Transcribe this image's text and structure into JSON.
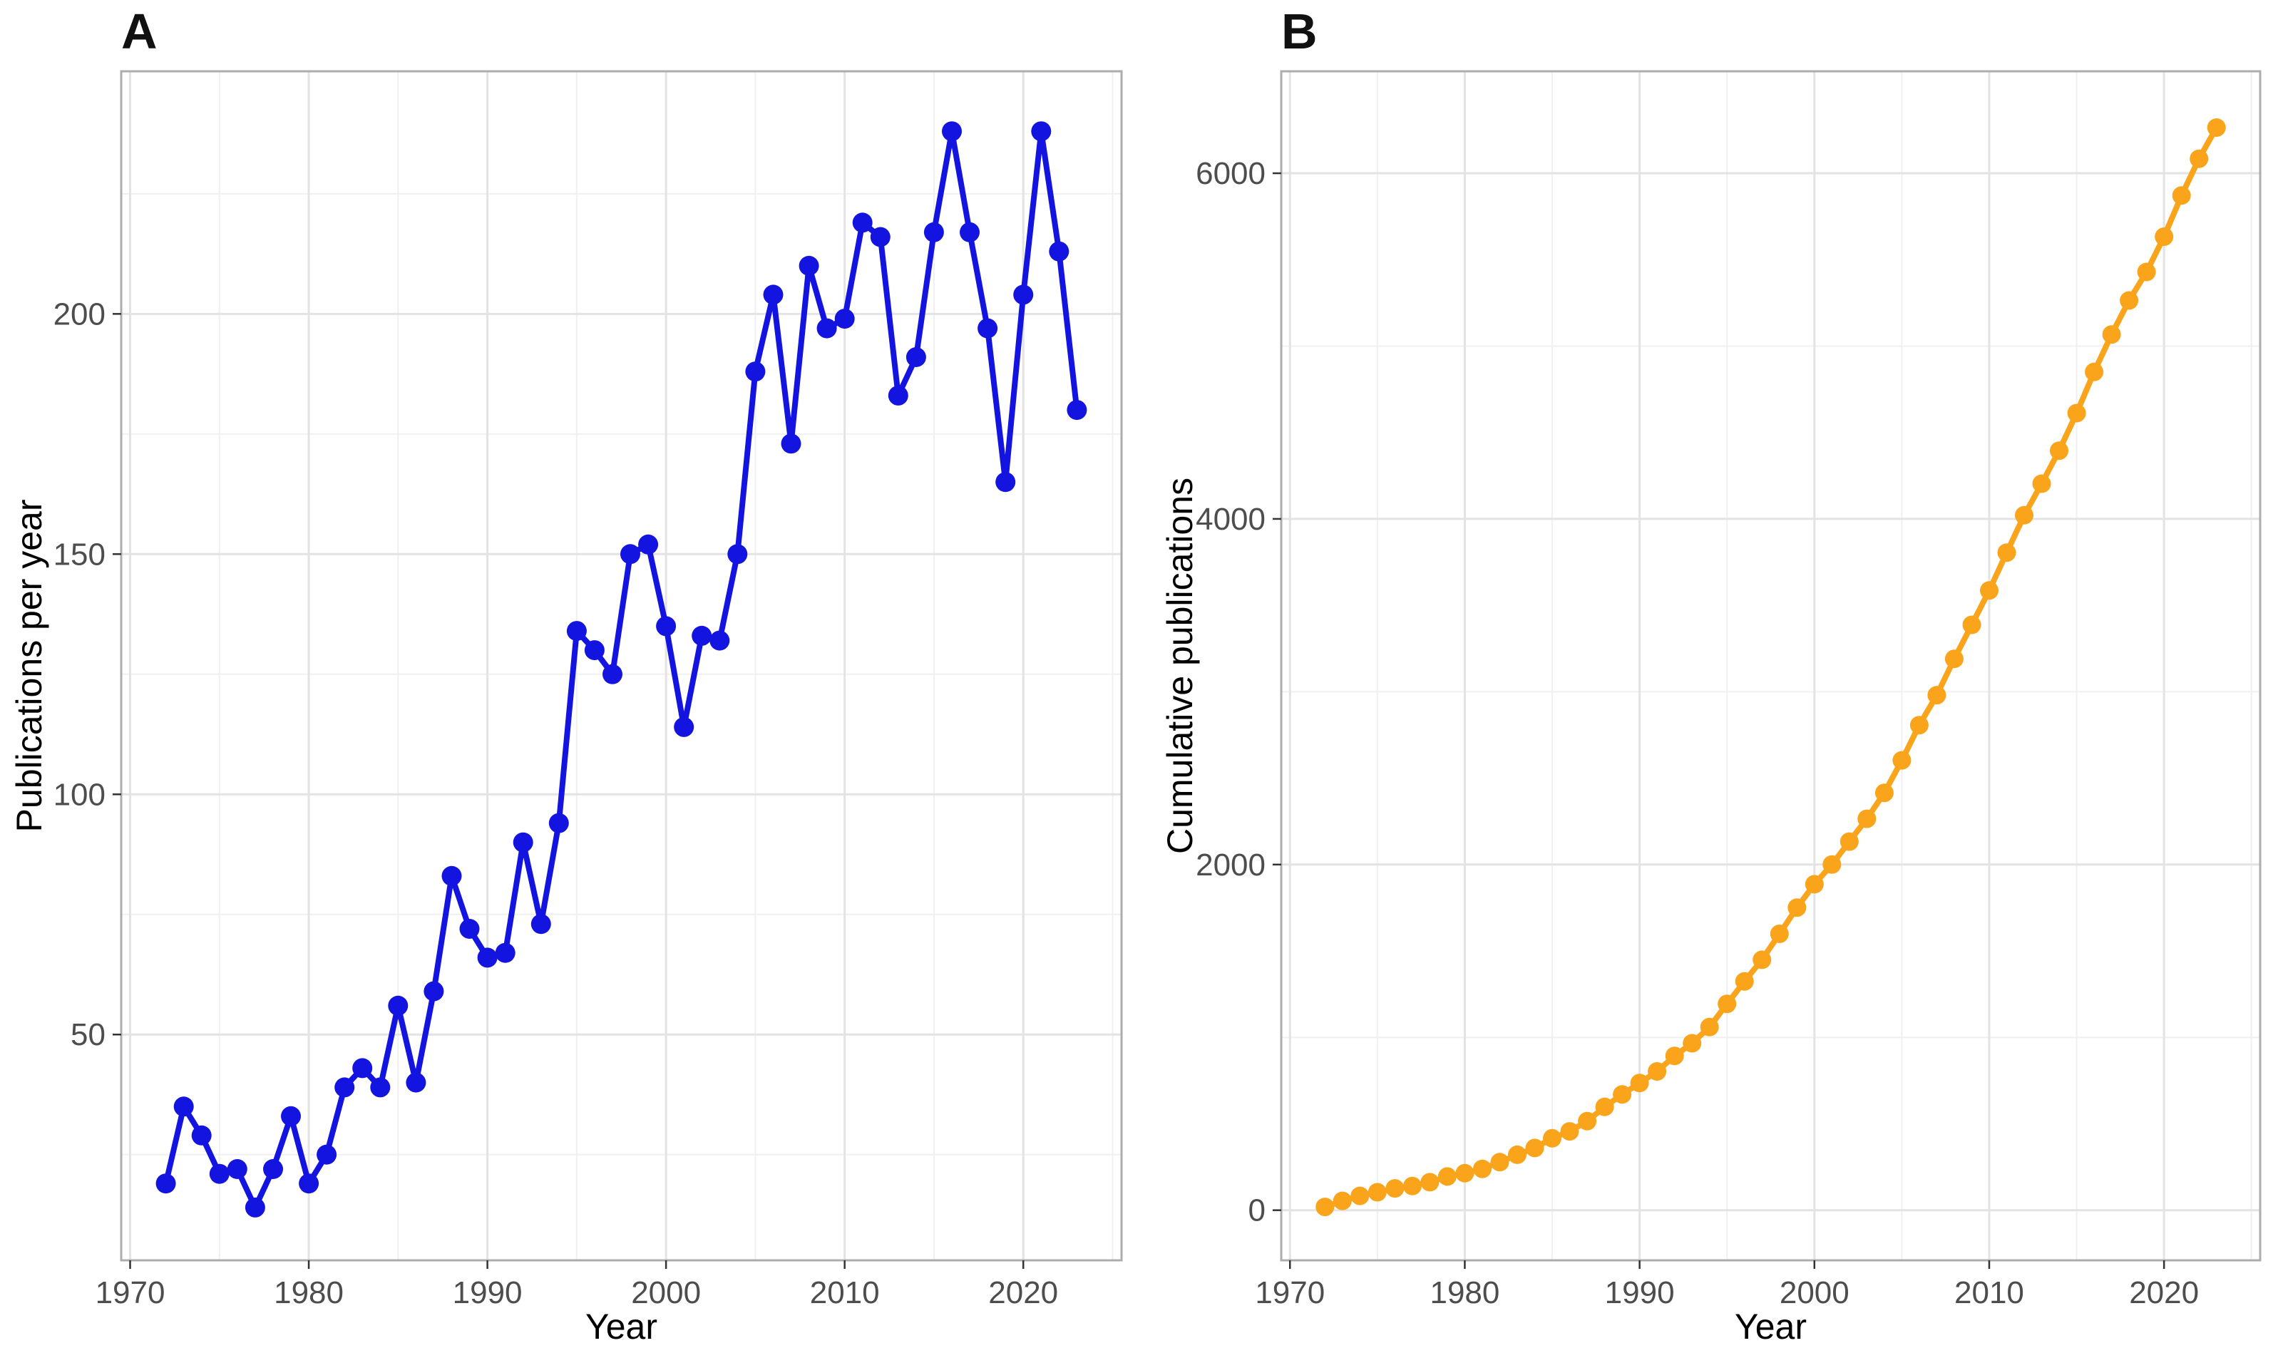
{
  "figure": {
    "background_color": "#ffffff",
    "panel_labels": [
      "A",
      "B"
    ]
  },
  "chart_data": [
    {
      "type": "line",
      "panel_label": "A",
      "title": "",
      "xlabel": "Year",
      "ylabel": "Publications per year",
      "series_name": "Publications per year",
      "series_color": "#1414e0",
      "marker": "circle",
      "legend": "none",
      "grid": "major and minor, light gray on white",
      "xlim": [
        1969.5,
        2025.5
      ],
      "ylim": [
        3,
        250.5
      ],
      "x_major_ticks": [
        1970,
        1980,
        1990,
        2000,
        2010,
        2020
      ],
      "x_minor_ticks": [
        1975,
        1985,
        1995,
        2005,
        2015,
        2025
      ],
      "x_tick_labels": [
        "1970",
        "1980",
        "1990",
        "2000",
        "2010",
        "2020"
      ],
      "y_major_ticks": [
        50,
        100,
        150,
        200
      ],
      "y_minor_ticks": [
        25,
        75,
        125,
        175,
        225
      ],
      "y_tick_labels": [
        "50",
        "100",
        "150",
        "200"
      ],
      "x": [
        1972,
        1973,
        1974,
        1975,
        1976,
        1977,
        1978,
        1979,
        1980,
        1981,
        1982,
        1983,
        1984,
        1985,
        1986,
        1987,
        1988,
        1989,
        1990,
        1991,
        1992,
        1993,
        1994,
        1995,
        1996,
        1997,
        1998,
        1999,
        2000,
        2001,
        2002,
        2003,
        2004,
        2005,
        2006,
        2007,
        2008,
        2009,
        2010,
        2011,
        2012,
        2013,
        2014,
        2015,
        2016,
        2017,
        2018,
        2019,
        2020,
        2021,
        2022,
        2023
      ],
      "values": [
        19,
        35,
        29,
        21,
        22,
        14,
        22,
        33,
        19,
        25,
        39,
        43,
        39,
        56,
        40,
        59,
        83,
        72,
        66,
        67,
        90,
        73,
        94,
        134,
        130,
        125,
        150,
        152,
        135,
        114,
        133,
        132,
        150,
        188,
        204,
        173,
        210,
        197,
        199,
        219,
        216,
        183,
        191,
        217,
        238,
        217,
        197,
        165,
        204,
        238,
        213,
        180
      ]
    },
    {
      "type": "line",
      "panel_label": "B",
      "title": "",
      "xlabel": "Year",
      "ylabel": "Cumulative publications",
      "series_name": "Cumulative publications",
      "series_color": "#f9a41b",
      "marker": "circle",
      "legend": "none",
      "grid": "major and minor, light gray on white",
      "xlim": [
        1969.5,
        2025.5
      ],
      "ylim": [
        -290,
        6590
      ],
      "x_major_ticks": [
        1970,
        1980,
        1990,
        2000,
        2010,
        2020
      ],
      "x_minor_ticks": [
        1975,
        1985,
        1995,
        2005,
        2015,
        2025
      ],
      "x_tick_labels": [
        "1970",
        "1980",
        "1990",
        "2000",
        "2010",
        "2020"
      ],
      "y_major_ticks": [
        0,
        2000,
        4000,
        6000
      ],
      "y_minor_ticks": [
        1000,
        3000,
        5000
      ],
      "y_tick_labels": [
        "0",
        "2000",
        "4000",
        "6000"
      ],
      "x": [
        1972,
        1973,
        1974,
        1975,
        1976,
        1977,
        1978,
        1979,
        1980,
        1981,
        1982,
        1983,
        1984,
        1985,
        1986,
        1987,
        1988,
        1989,
        1990,
        1991,
        1992,
        1993,
        1994,
        1995,
        1996,
        1997,
        1998,
        1999,
        2000,
        2001,
        2002,
        2003,
        2004,
        2005,
        2006,
        2007,
        2008,
        2009,
        2010,
        2011,
        2012,
        2013,
        2014,
        2015,
        2016,
        2017,
        2018,
        2019,
        2020,
        2021,
        2022,
        2023
      ],
      "values": [
        19,
        54,
        83,
        104,
        126,
        140,
        162,
        195,
        214,
        239,
        278,
        321,
        360,
        416,
        456,
        515,
        598,
        670,
        736,
        803,
        893,
        966,
        1060,
        1194,
        1324,
        1449,
        1599,
        1751,
        1886,
        2000,
        2133,
        2265,
        2415,
        2603,
        2807,
        2980,
        3190,
        3387,
        3586,
        3805,
        4021,
        4204,
        4395,
        4612,
        4850,
        5067,
        5264,
        5429,
        5633,
        5871,
        6084,
        6264
      ]
    }
  ]
}
